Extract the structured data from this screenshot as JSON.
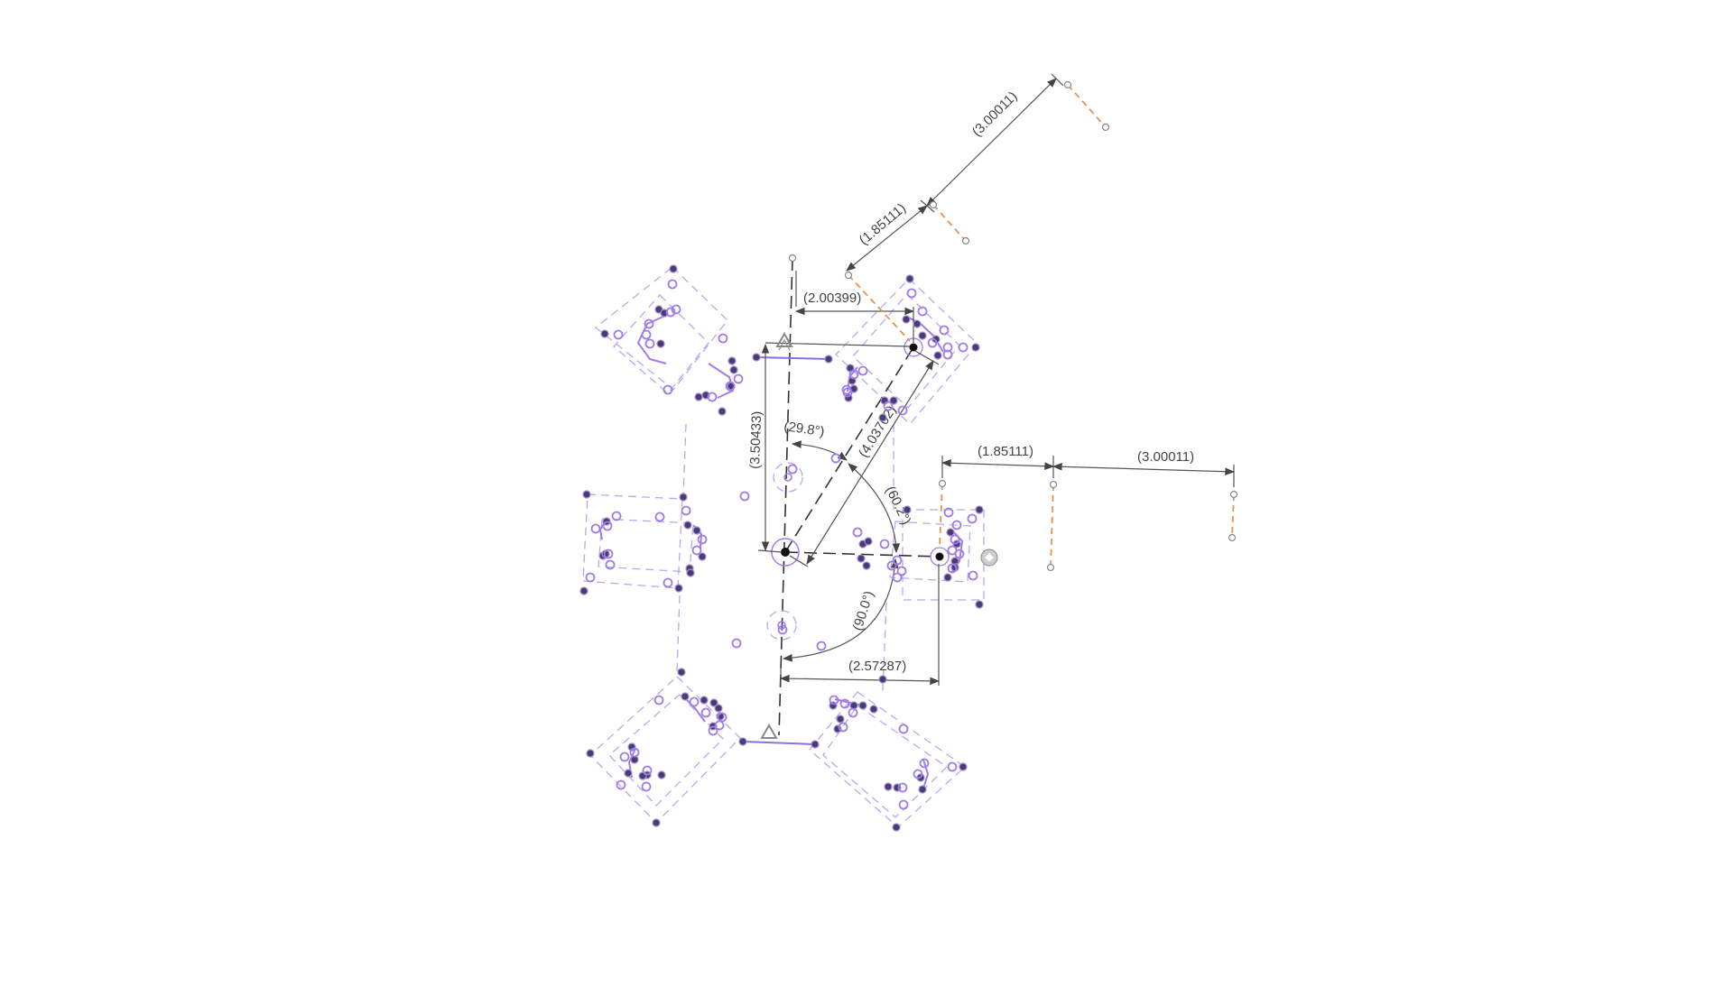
{
  "sketch": {
    "dimensions": {
      "horiz_top": "(2.00399)",
      "vert_left": "(3.50433)",
      "angle_top": "(29.8°)",
      "diag": "(4.03702)",
      "angle_right": "(60.2°)",
      "angle_bottom": "(90.0°)",
      "horiz_bottom": "(2.57287)",
      "right_a": "(1.85111)",
      "right_b": "(3.00011)",
      "diag_a": "(1.85111)",
      "diag_b": "(3.00011)"
    },
    "colors": {
      "construction": "#b8a8f0",
      "geometry": "#a07ce8",
      "dimension": "#555555",
      "orange_construction": "#e89050",
      "point_dark": "#4a3a78"
    },
    "icons": [
      "fixed-constraint-icon",
      "coincident-constraint-icon"
    ]
  }
}
